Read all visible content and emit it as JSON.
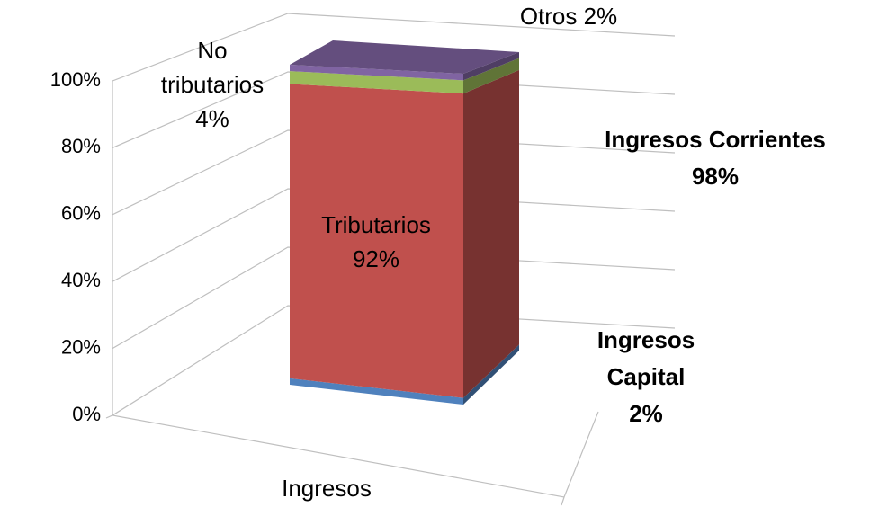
{
  "chart_data": {
    "type": "bar",
    "stacked": true,
    "categories": [
      "Ingresos"
    ],
    "ylim": [
      0,
      100
    ],
    "yticks": [
      {
        "value": 0,
        "label": "0%"
      },
      {
        "value": 20,
        "label": "20%"
      },
      {
        "value": 40,
        "label": "40%"
      },
      {
        "value": 60,
        "label": "60%"
      },
      {
        "value": 80,
        "label": "80%"
      },
      {
        "value": 100,
        "label": "100%"
      }
    ],
    "grid": true,
    "series": [
      {
        "color": "#4f81bd",
        "values": [
          2
        ],
        "value_labels": [
          [
            "Ingresos",
            "Capital",
            "2%"
          ]
        ],
        "bold": true
      },
      {
        "color": "#c0504d",
        "values": [
          92
        ],
        "value_labels": [
          [
            "Tributarios",
            "92%"
          ]
        ]
      },
      {
        "color": "#9bbb59",
        "values": [
          4
        ],
        "value_labels": [
          [
            "No",
            "tributarios",
            "4%"
          ]
        ]
      },
      {
        "color": "#8064a2",
        "values": [
          2
        ],
        "value_labels": [
          [
            "Otros 2%"
          ]
        ]
      }
    ],
    "annotations": [
      {
        "text": [
          "Ingresos Corrientes",
          "98%"
        ],
        "value": 98
      }
    ]
  }
}
